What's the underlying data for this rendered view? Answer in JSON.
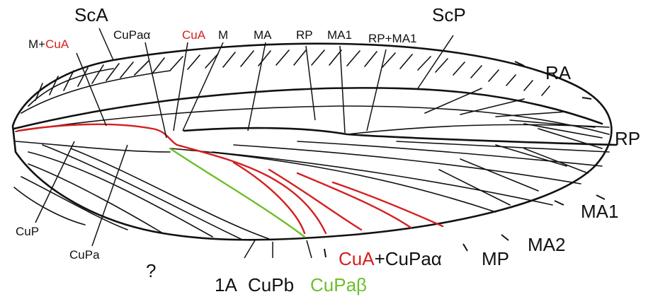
{
  "labels": {
    "ScA": "ScA",
    "ScP": "ScP",
    "M_plus": "M+",
    "CuA": "CuA",
    "CuPa_alpha": "CuPaα",
    "M": "M",
    "MA": "MA",
    "RP": "RP",
    "MA1": "MA1",
    "RP_plus_MA1": "RP+MA1",
    "RA": "RA",
    "RP_right": "RP",
    "MA1_right": "MA1",
    "MA2": "MA2",
    "MP": "MP",
    "CuA_bottom": "CuA",
    "plus_CuPa_alpha": "+CuPaα",
    "CuPa_beta": "CuPaβ",
    "CuPb": "CuPb",
    "A1": "1A",
    "CuP": "CuP",
    "CuPa": "CuPa",
    "question": "?"
  },
  "colors": {
    "ink": "#111111",
    "cua_red": "#d42020",
    "cupa_beta_green": "#6cbf2a"
  }
}
